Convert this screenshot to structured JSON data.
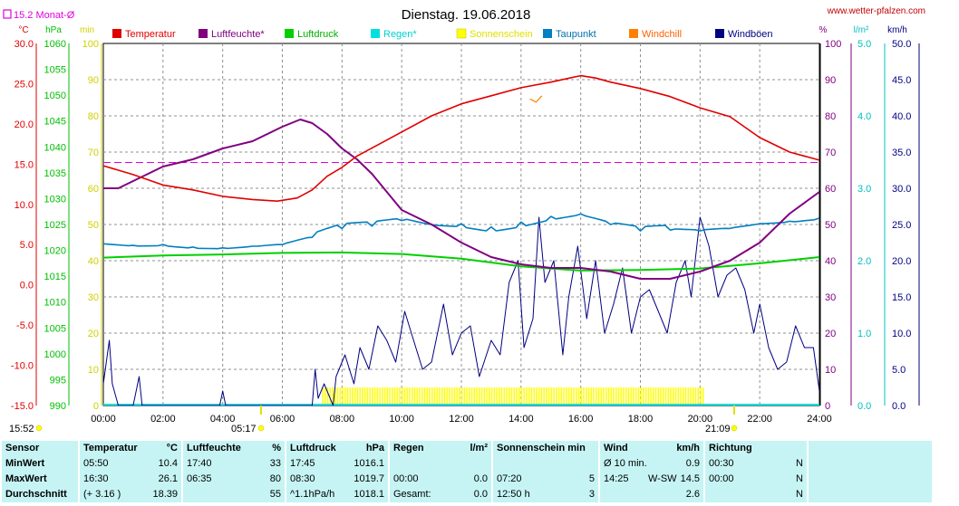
{
  "header": {
    "title": "Dienstag. 19.06.2018",
    "site": "www.wetter-pfalzen.com",
    "month_avg": "15.2 Monat-Ø",
    "sunrise": "05:17",
    "sunset": "21:09",
    "time_left": "15:52"
  },
  "colors": {
    "temperature": "#e00000",
    "humidity": "#800080",
    "pressure": "#00d000",
    "rain": "#00e0e0",
    "sunshine": "#ffff00",
    "dewpoint": "#0080c0",
    "windchill": "#ff8000",
    "gusts": "#000080",
    "month_avg_line": "#e000e0"
  },
  "chart_data": {
    "type": "line",
    "title": "Dienstag. 19.06.2018",
    "x_range": [
      "00:00",
      "24:00"
    ],
    "x_ticks": [
      "00:00",
      "02:00",
      "04:00",
      "06:00",
      "08:00",
      "10:00",
      "12:00",
      "14:00",
      "16:00",
      "18:00",
      "20:00",
      "22:00",
      "24:00"
    ],
    "legend": [
      "Temperatur",
      "Luftfeuchte*",
      "Luftdruck",
      "Regen*",
      "Sonnenschein",
      "Taupunkt",
      "Windchill",
      "Windböen"
    ],
    "axes": {
      "temperature": {
        "unit": "°C",
        "range": [
          -15,
          30
        ],
        "ticks": [
          "30.0",
          "25.0",
          "20.0",
          "15.0",
          "10.0",
          "5.0",
          "0.0",
          "-5.0",
          "-10.0",
          "-15.0"
        ]
      },
      "pressure": {
        "unit": "hPa",
        "range": [
          990,
          1060
        ],
        "ticks": [
          "1060",
          "1055",
          "1050",
          "1045",
          "1040",
          "1035",
          "1030",
          "1025",
          "1020",
          "1015",
          "1010",
          "1005",
          "1000",
          "995",
          "990"
        ]
      },
      "sunshine": {
        "unit": "min",
        "range": [
          0,
          100
        ],
        "ticks": [
          "100",
          "90",
          "80",
          "70",
          "60",
          "50",
          "40",
          "30",
          "20",
          "10",
          "0"
        ]
      },
      "humidity": {
        "unit": "%",
        "range": [
          0,
          100
        ],
        "ticks": [
          "100",
          "90",
          "80",
          "70",
          "60",
          "50",
          "40",
          "30",
          "20",
          "10",
          "0"
        ]
      },
      "rain": {
        "unit": "l/m²",
        "range": [
          0,
          5
        ],
        "ticks": [
          "5.0",
          "4.0",
          "3.0",
          "2.0",
          "1.0",
          "0.0"
        ]
      },
      "wind": {
        "unit": "km/h",
        "range": [
          0,
          50
        ],
        "ticks": [
          "50.0",
          "45.0",
          "40.0",
          "35.0",
          "30.0",
          "25.0",
          "20.0",
          "15.0",
          "10.0",
          "5.0",
          "0.0"
        ]
      }
    },
    "month_avg_temperature": 15.2,
    "series": [
      {
        "name": "Temperatur",
        "x": [
          0,
          1,
          2,
          3,
          4,
          5,
          5.83,
          6.5,
          7,
          7.5,
          8,
          8.5,
          9,
          10,
          11,
          12,
          13,
          14,
          15,
          16,
          16.5,
          17,
          18,
          19,
          20,
          21,
          22,
          23,
          24
        ],
        "values": [
          14.8,
          13.7,
          12.4,
          11.8,
          11.0,
          10.6,
          10.4,
          10.8,
          11.8,
          13.5,
          14.6,
          16.0,
          17.0,
          19.0,
          21.0,
          22.5,
          23.5,
          24.5,
          25.2,
          26.0,
          25.7,
          25.2,
          24.4,
          23.4,
          22.0,
          20.9,
          18.3,
          16.5,
          15.5
        ]
      },
      {
        "name": "Luftfeuchte*",
        "x": [
          0,
          0.5,
          1,
          1.5,
          2,
          3,
          4,
          5,
          6,
          6.6,
          7,
          7.5,
          8,
          8.5,
          9,
          10,
          11,
          12,
          13,
          14,
          15,
          16,
          17,
          18,
          19,
          20,
          21,
          22,
          23,
          24
        ],
        "values": [
          60,
          60,
          62,
          64,
          66,
          68,
          71,
          73,
          77,
          79,
          78,
          75,
          71,
          68,
          64,
          54,
          50,
          45,
          41,
          39,
          38,
          38,
          37,
          35,
          35,
          37,
          40,
          45,
          53,
          59
        ]
      },
      {
        "name": "Luftdruck",
        "x": [
          0,
          2,
          4,
          6,
          8,
          10,
          12,
          14,
          16,
          18,
          20,
          22,
          24
        ],
        "values": [
          1018.6,
          1019.0,
          1019.2,
          1019.5,
          1019.6,
          1019.3,
          1018.4,
          1016.9,
          1016.1,
          1016.2,
          1016.5,
          1017.5,
          1018.7
        ]
      },
      {
        "name": "Taupunkt",
        "x": [
          0,
          1,
          2,
          3,
          4,
          5,
          6,
          7,
          8,
          9,
          10,
          11,
          12,
          13,
          14,
          15,
          16,
          17,
          18,
          19,
          20,
          21,
          22,
          23,
          24
        ],
        "values": [
          5.1,
          4.9,
          5.0,
          4.7,
          4.6,
          4.8,
          5.0,
          5.9,
          7.0,
          7.3,
          8.0,
          7.5,
          7.6,
          7.2,
          7.8,
          8.5,
          8.8,
          7.5,
          6.7,
          6.8,
          6.7,
          7.0,
          7.6,
          7.9,
          8.3
        ]
      },
      {
        "name": "Windchill",
        "x": [
          14.3,
          14.5,
          14.7
        ],
        "values": [
          23.1,
          22.7,
          23.5
        ]
      },
      {
        "name": "Sonnenschein",
        "x": [
          7.33,
          20.1
        ],
        "values": [
          5,
          5
        ]
      },
      {
        "name": "Windböen",
        "x": [
          0,
          0.2,
          0.3,
          0.5,
          0.6,
          0.8,
          1.0,
          1.2,
          1.3,
          1.5,
          1.7,
          2,
          3,
          3.9,
          4.0,
          4.1,
          5,
          6,
          7,
          7.1,
          7.2,
          7.4,
          7.7,
          7.8,
          8.1,
          8.4,
          8.6,
          8.9,
          9.2,
          9.5,
          9.8,
          10.1,
          10.4,
          10.7,
          11.0,
          11.4,
          11.7,
          12.0,
          12.3,
          12.6,
          13.0,
          13.3,
          13.6,
          13.9,
          14.1,
          14.4,
          14.6,
          14.8,
          15.1,
          15.4,
          15.6,
          15.9,
          16.2,
          16.5,
          16.8,
          17.1,
          17.4,
          17.7,
          18.0,
          18.3,
          18.6,
          18.9,
          19.2,
          19.5,
          19.7,
          20.0,
          20.3,
          20.6,
          20.9,
          21.2,
          21.5,
          21.8,
          22.0,
          22.3,
          22.6,
          22.9,
          23.2,
          23.5,
          23.8,
          24.0
        ],
        "values": [
          3,
          9,
          3,
          0,
          0,
          0,
          0,
          4,
          0,
          0,
          0,
          0,
          0,
          0,
          2,
          0,
          0,
          0,
          0,
          5,
          1,
          3,
          0,
          4,
          7,
          3,
          8,
          5,
          11,
          9,
          6,
          13,
          9,
          5,
          6,
          14,
          7,
          10,
          11,
          4,
          9,
          7,
          17,
          20,
          8,
          12,
          26,
          17,
          20,
          7,
          15,
          22,
          12,
          20,
          10,
          14,
          19,
          10,
          15,
          16,
          13,
          10,
          17,
          20,
          15,
          26,
          22,
          15,
          18,
          19,
          16,
          10,
          14,
          8,
          5,
          6,
          11,
          8,
          8,
          2
        ]
      }
    ],
    "sunshine_bars_start": "07:20",
    "sunshine_bars_end": "20:05"
  },
  "stats": {
    "headers": {
      "sensor": "Sensor",
      "temperature": "Temperatur",
      "temperature_unit": "°C",
      "humidity": "Luftfeuchte",
      "humidity_unit": "%",
      "pressure": "Luftdruck",
      "pressure_unit": "hPa",
      "rain": "Regen",
      "rain_unit": "l/m²",
      "sunshine": "Sonnenschein min",
      "wind": "Wind",
      "wind_unit": "km/h",
      "direction": "Richtung"
    },
    "rows": [
      {
        "label": "MinWert",
        "temp_time": "05:50",
        "temp_val": "10.4",
        "hum_time": "17:40",
        "hum_val": "33",
        "pres_time": "17:45",
        "pres_val": "1016.1",
        "rain_time": "",
        "rain_val": "",
        "sun_time": "",
        "sun_val": "",
        "wind_time": "Ø 10 min.",
        "wind_dir": "",
        "wind_val": "0.9",
        "dir_time": "00:30",
        "dir_val": "N"
      },
      {
        "label": "MaxWert",
        "temp_time": "16:30",
        "temp_val": "26.1",
        "hum_time": "06:35",
        "hum_val": "80",
        "pres_time": "08:30",
        "pres_val": "1019.7",
        "rain_time": "00:00",
        "rain_val": "0.0",
        "sun_time": "07:20",
        "sun_val": "5",
        "wind_time": "14:25",
        "wind_dir": "W-SW",
        "wind_val": "14.5",
        "dir_time": "00:00",
        "dir_val": "N"
      },
      {
        "label": "Durchschnitt",
        "temp_time": "(+ 3.16 )",
        "temp_val": "18.39",
        "hum_time": "",
        "hum_val": "55",
        "pres_time": "^1.1hPa/h",
        "pres_val": "1018.1",
        "rain_time": "Gesamt:",
        "rain_val": "0.0",
        "sun_time": "12:50 h",
        "sun_val": "3",
        "wind_time": "",
        "wind_dir": "",
        "wind_val": "2.6",
        "dir_time": "",
        "dir_val": "N"
      }
    ]
  }
}
